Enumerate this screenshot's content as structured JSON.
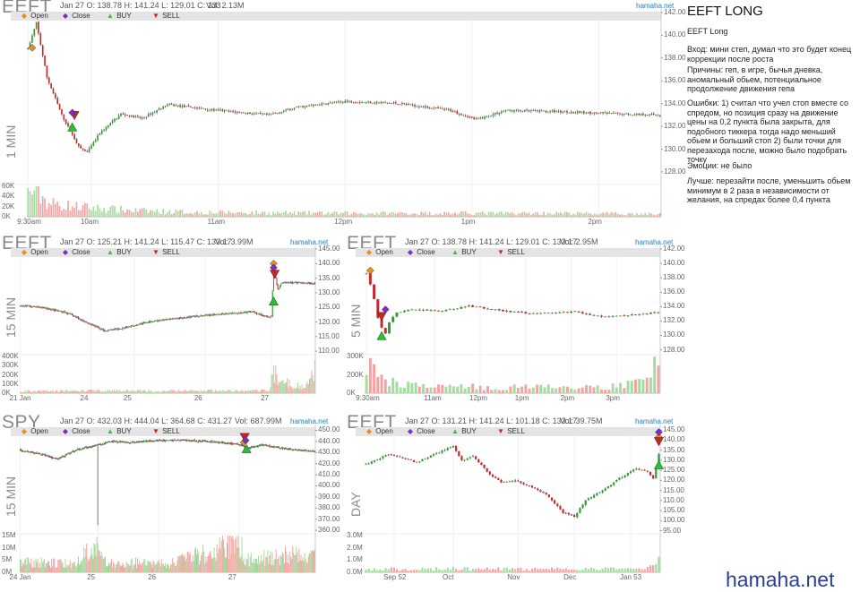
{
  "side_panel": {
    "title": "EEFT LONG",
    "subtitle": "EEFT Long",
    "entry": "Вход: мини степ, думал что это будет конец коррекции после роста",
    "reasons": "Причины: геп, в игре, бычья дневка, аномальный обьем, потенциальное продолжение движения гепа",
    "mistakes": "Ошибки: 1) считал что учел стоп вместе со спредом, но позиция сразу на движение цены на 0,2 пункта была закрыта, для подобного тиккера тогда надо меньший обьем и больший стоп 2) были точки для перезахода после, можно было подобрать точку",
    "emotions": "Эмоции: не было",
    "better": "Лучше: перезайти после, уменьшить обьем минимум в 2 раза в независимости от желания, на спредах более 0,4 пункта"
  },
  "brand": "hamaha.net",
  "legend": {
    "open": "Open",
    "close": "Close",
    "buy": "BUY",
    "sell": "SELL"
  },
  "colors": {
    "up": "#2ca02c",
    "down": "#c62828",
    "vol_up": "#a6dba0",
    "vol_down": "#f4a3a3",
    "open_marker": "#e8901a",
    "close_marker": "#7b2fbe",
    "buy_marker": "#2fbe3a",
    "sell_marker": "#c62828",
    "source_link": "#2a7ab8",
    "brand": "#2b3f99"
  },
  "chart_data": [
    {
      "id": "eeft-1min",
      "type": "candlestick",
      "symbol": "EEFT",
      "timeframe": "1 MIN",
      "header": "Jan 27 O: 138.78 H: 141.24 L: 129.01 C: 133",
      "volume_label": "Vol: 2.13M",
      "source": "hamaha.net",
      "y_ticks": [
        "142.00",
        "140.00",
        "138.00",
        "136.00",
        "134.00",
        "132.00",
        "130.00",
        "128.00"
      ],
      "ylim": [
        127.6,
        142.0
      ],
      "vol_ticks": [
        "60K",
        "40K",
        "20K",
        "0K"
      ],
      "vol_max": 62000,
      "x_ticks": [
        "9:30am",
        "10am",
        "11am",
        "12pm",
        "1pm",
        "2pm"
      ],
      "x_tick_pos": [
        0,
        30,
        90,
        150,
        210,
        270
      ],
      "n_bars": 300,
      "waypoints": [
        [
          0,
          138.8
        ],
        [
          4,
          141.1
        ],
        [
          9,
          136.3
        ],
        [
          16,
          133.0
        ],
        [
          24,
          130.2
        ],
        [
          28,
          129.7
        ],
        [
          34,
          131.4
        ],
        [
          44,
          133.1
        ],
        [
          54,
          132.7
        ],
        [
          66,
          133.9
        ],
        [
          90,
          133.4
        ],
        [
          114,
          133.0
        ],
        [
          128,
          133.7
        ],
        [
          150,
          134.2
        ],
        [
          176,
          134.0
        ],
        [
          200,
          133.4
        ],
        [
          212,
          132.6
        ],
        [
          226,
          133.4
        ],
        [
          250,
          133.3
        ],
        [
          280,
          133.1
        ],
        [
          299,
          133.0
        ]
      ],
      "markers": [
        {
          "type": "open",
          "bar": 2,
          "price": 138.9
        },
        {
          "type": "buy",
          "bar": 21,
          "price": 131.9
        },
        {
          "type": "sell",
          "bar": 22,
          "price": 133.0
        },
        {
          "type": "close",
          "bar": 21,
          "price": 133.2
        }
      ],
      "vol_waypoints": [
        [
          0,
          52000
        ],
        [
          3,
          62000
        ],
        [
          10,
          30000
        ],
        [
          25,
          22000
        ],
        [
          50,
          14000
        ],
        [
          80,
          10000
        ],
        [
          150,
          8000
        ],
        [
          250,
          8000
        ],
        [
          299,
          6000
        ]
      ]
    },
    {
      "id": "eeft-15min",
      "type": "candlestick",
      "symbol": "EEFT",
      "timeframe": "15 MIN",
      "header": "Jan 27 O: 125.21 H: 141.24 L: 115.47 C: 133.17",
      "volume_label": "Vol: 3.99M",
      "source": "hamaha.net",
      "y_ticks": [
        "145.00",
        "140.00",
        "135.00",
        "130.00",
        "125.00",
        "120.00",
        "115.00",
        "110.00"
      ],
      "ylim": [
        108.5,
        145.0
      ],
      "vol_ticks": [
        "400K",
        "300K",
        "200K",
        "100K",
        "0K"
      ],
      "vol_max": 410000,
      "x_ticks": [
        "21 Jan",
        "24",
        "25",
        "26",
        "27"
      ],
      "x_tick_pos": [
        0,
        67,
        108,
        175,
        238
      ],
      "n_bars": 280,
      "waypoints": [
        [
          0,
          125.5
        ],
        [
          20,
          125.0
        ],
        [
          45,
          123.0
        ],
        [
          65,
          119.5
        ],
        [
          80,
          117.0
        ],
        [
          95,
          117.8
        ],
        [
          115,
          119.5
        ],
        [
          140,
          121.0
        ],
        [
          170,
          122.0
        ],
        [
          200,
          123.0
        ],
        [
          220,
          123.5
        ],
        [
          236,
          121.5
        ],
        [
          238,
          122.0
        ],
        [
          240,
          139.0
        ],
        [
          244,
          131.0
        ],
        [
          248,
          133.5
        ],
        [
          260,
          133.5
        ],
        [
          279,
          133.2
        ]
      ],
      "markers": [
        {
          "type": "open",
          "bar": 240,
          "price": 140.0
        },
        {
          "type": "buy",
          "bar": 240,
          "price": 127.0
        },
        {
          "type": "sell",
          "bar": 241,
          "price": 136.5
        },
        {
          "type": "close",
          "bar": 240,
          "price": 138.6
        }
      ],
      "vol_waypoints": [
        [
          0,
          25000
        ],
        [
          60,
          30000
        ],
        [
          150,
          30000
        ],
        [
          236,
          30000
        ],
        [
          239,
          230000
        ],
        [
          240,
          310000
        ],
        [
          245,
          160000
        ],
        [
          270,
          60000
        ],
        [
          279,
          300000
        ]
      ]
    },
    {
      "id": "eeft-5min",
      "type": "candlestick",
      "symbol": "EEFT",
      "timeframe": "5 MIN",
      "header": "Jan 27 O: 138.78 H: 141.24 L: 129.01 C: 133.17",
      "volume_label": "Vol: 2.95M",
      "source": "hamaha.net",
      "y_ticks": [
        "142.00",
        "140.00",
        "138.00",
        "136.00",
        "134.00",
        "132.00",
        "130.00",
        "128.00"
      ],
      "ylim": [
        127.2,
        142.0
      ],
      "vol_ticks": [
        "300K",
        "200K",
        "0K"
      ],
      "vol_max": 310000,
      "x_ticks": [
        "9:30am",
        "11am",
        "12pm",
        "1pm",
        "2pm",
        "3pm"
      ],
      "x_tick_pos": [
        0,
        18,
        30,
        42,
        54,
        66
      ],
      "n_bars": 78,
      "waypoints": [
        [
          0,
          138.6
        ],
        [
          1,
          137.0
        ],
        [
          2,
          135.0
        ],
        [
          3,
          132.5
        ],
        [
          4,
          131.0
        ],
        [
          5,
          130.3
        ],
        [
          6,
          131.8
        ],
        [
          8,
          133.2
        ],
        [
          12,
          133.6
        ],
        [
          20,
          133.4
        ],
        [
          27,
          134.1
        ],
        [
          35,
          133.5
        ],
        [
          43,
          133.0
        ],
        [
          55,
          133.3
        ],
        [
          62,
          132.6
        ],
        [
          68,
          132.8
        ],
        [
          77,
          133.2
        ]
      ],
      "markers": [
        {
          "type": "open",
          "bar": 1,
          "price": 139.0
        },
        {
          "type": "buy",
          "bar": 4,
          "price": 129.9
        },
        {
          "type": "sell",
          "bar": 4,
          "price": 132.7
        },
        {
          "type": "close",
          "bar": 5,
          "price": 133.6
        }
      ],
      "vol_waypoints": [
        [
          0,
          230000
        ],
        [
          2,
          210000
        ],
        [
          5,
          160000
        ],
        [
          8,
          100000
        ],
        [
          15,
          60000
        ],
        [
          40,
          55000
        ],
        [
          60,
          50000
        ],
        [
          74,
          100000
        ],
        [
          77,
          310000
        ]
      ]
    },
    {
      "id": "spy-15min",
      "type": "candlestick",
      "symbol": "SPY",
      "timeframe": "15 MIN",
      "header": "Jan 27 O: 432.03 H: 444.04 L: 364.68 C: 431.27",
      "volume_label": "Vol: 687.99M",
      "source": "hamaha.net",
      "y_ticks": [
        "450.00",
        "440.00",
        "430.00",
        "420.00",
        "410.00",
        "400.00",
        "390.00",
        "380.00",
        "370.00",
        "360.00"
      ],
      "ylim": [
        356.0,
        452.0
      ],
      "vol_ticks": [
        "15M",
        "10M",
        "5M",
        "0M"
      ],
      "vol_max": 16000000,
      "x_ticks": [
        "24 Jan",
        "25",
        "26",
        "27"
      ],
      "x_tick_pos": [
        0,
        84,
        150,
        237
      ],
      "n_bars": 320,
      "waypoints": [
        [
          0,
          432
        ],
        [
          25,
          428
        ],
        [
          40,
          424
        ],
        [
          60,
          432
        ],
        [
          84,
          437
        ],
        [
          100,
          440
        ],
        [
          120,
          439
        ],
        [
          150,
          441
        ],
        [
          180,
          441
        ],
        [
          200,
          440
        ],
        [
          220,
          439
        ],
        [
          236,
          437
        ],
        [
          248,
          434
        ],
        [
          262,
          437
        ],
        [
          290,
          433
        ],
        [
          319,
          431
        ]
      ],
      "spike": {
        "bar": 84,
        "low": 364.7
      },
      "markers": [
        {
          "type": "open",
          "bar": 242,
          "price": 439
        },
        {
          "type": "buy",
          "bar": 245,
          "price": 433
        },
        {
          "type": "sell",
          "bar": 243,
          "price": 444
        },
        {
          "type": "close",
          "bar": 244,
          "price": 441
        }
      ],
      "vol_waypoints": [
        [
          0,
          5000000
        ],
        [
          60,
          4000000
        ],
        [
          84,
          15000000
        ],
        [
          90,
          5000000
        ],
        [
          160,
          4000000
        ],
        [
          237,
          14000000
        ],
        [
          245,
          6000000
        ],
        [
          319,
          10000000
        ]
      ]
    },
    {
      "id": "eeft-day",
      "type": "candlestick",
      "symbol": "EEFT",
      "timeframe": "DAY",
      "header": "Jan 27 O: 131.21 H: 141.24 L: 101.18 C: 133.17",
      "volume_label": "Vol: 39.75M",
      "source": "hamaha.net",
      "y_ticks": [
        "145.00",
        "140.00",
        "135.00",
        "130.00",
        "125.00",
        "120.00",
        "115.00",
        "110.00",
        "105.00",
        "100.00",
        "95.00"
      ],
      "ylim": [
        93.0,
        146.0
      ],
      "vol_ticks": [
        "3.0M",
        "2.0M",
        "1.0M",
        "0.0M"
      ],
      "vol_max": 3200000,
      "x_ticks": [
        "Sep 52",
        "Oct",
        "Nov",
        "Dec",
        "Jan 53"
      ],
      "x_tick_pos": [
        10,
        31,
        54,
        74,
        94
      ],
      "n_bars": 105,
      "waypoints": [
        [
          0,
          128
        ],
        [
          8,
          133
        ],
        [
          18,
          129
        ],
        [
          26,
          134
        ],
        [
          31,
          137
        ],
        [
          34,
          130
        ],
        [
          38,
          132
        ],
        [
          44,
          123
        ],
        [
          48,
          119
        ],
        [
          53,
          120
        ],
        [
          58,
          117
        ],
        [
          64,
          113
        ],
        [
          70,
          104
        ],
        [
          74,
          102
        ],
        [
          78,
          110
        ],
        [
          84,
          115
        ],
        [
          90,
          121
        ],
        [
          96,
          126
        ],
        [
          100,
          124
        ],
        [
          102,
          121
        ],
        [
          104,
          133
        ]
      ],
      "markers": [
        {
          "type": "open",
          "bar": 104,
          "price": 141.5
        },
        {
          "type": "buy",
          "bar": 104,
          "price": 127.5
        },
        {
          "type": "sell",
          "bar": 104,
          "price": 139.5
        },
        {
          "type": "close",
          "bar": 104,
          "price": 144.0
        }
      ],
      "vol_waypoints": [
        [
          0,
          300000
        ],
        [
          30,
          350000
        ],
        [
          60,
          300000
        ],
        [
          90,
          350000
        ],
        [
          103,
          500000
        ],
        [
          104,
          2950000
        ]
      ]
    }
  ]
}
